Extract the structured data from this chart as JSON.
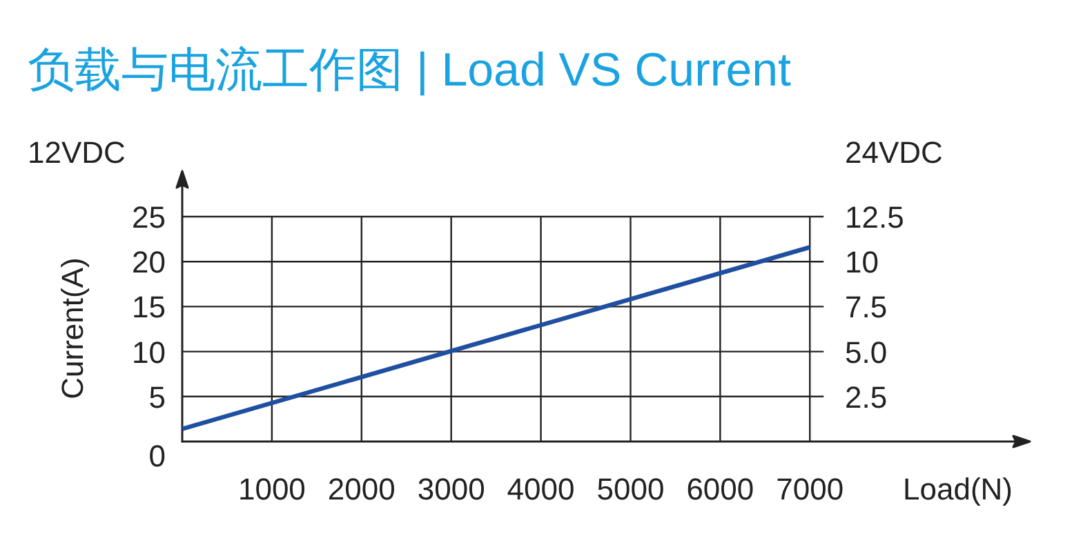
{
  "chart_data": {
    "type": "line",
    "title": "负载与电流工作图 | Load VS Current",
    "xlabel": "Load(N)",
    "ylabel": "Current(A)",
    "annotations": [
      "12VDC",
      "24VDC"
    ],
    "x": [
      0,
      7000
    ],
    "series": [
      {
        "color": "#1f4fa0",
        "values": [
          1.4,
          21.6
        ]
      }
    ],
    "xlim": [
      0,
      9300
    ],
    "xticks": [
      1000,
      2000,
      3000,
      4000,
      5000,
      6000,
      7000
    ],
    "ylim": [
      0,
      25
    ],
    "yticks": [
      0,
      5,
      10,
      15,
      20,
      25
    ],
    "y2lim": [
      0,
      12.5
    ],
    "y2ticks": [
      2.5,
      {
        "value": 5,
        "label": "5.0"
      },
      7.5,
      10,
      12.5
    ],
    "grid": true,
    "marker": "none",
    "line_style": "solid"
  }
}
